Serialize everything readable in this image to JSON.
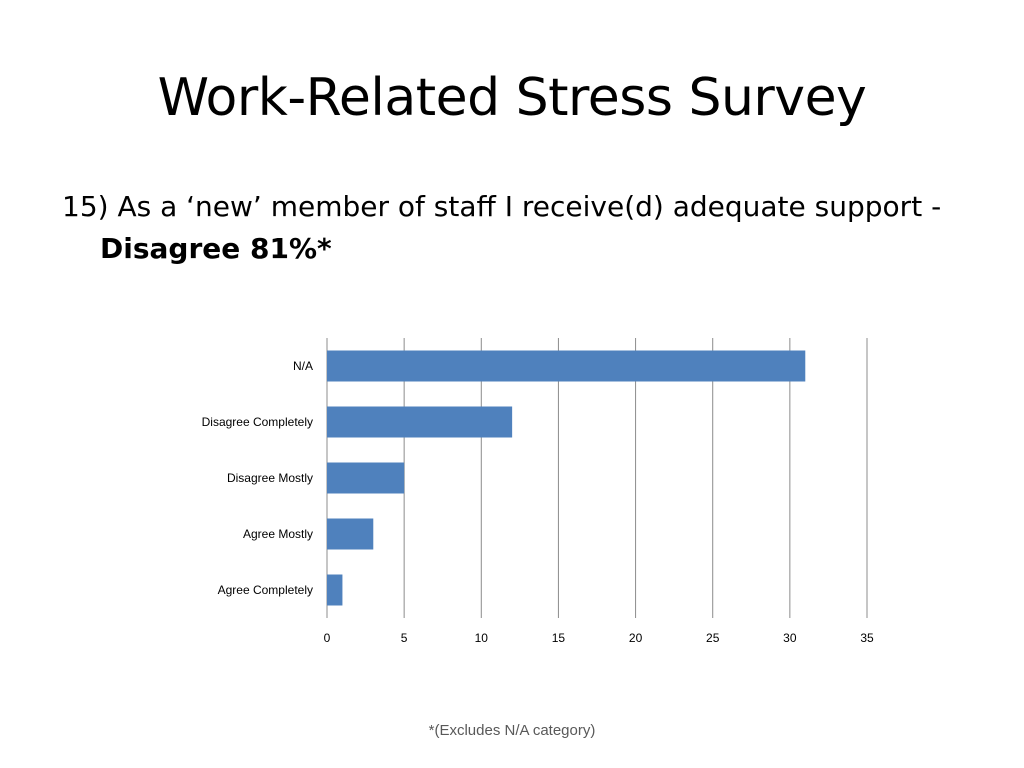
{
  "slide": {
    "title": "Work-Related Stress Survey",
    "question_text": "15) As a ‘new’ member of staff I receive(d) adequate support -",
    "question_highlight": "Disagree 81%*",
    "footnote": "*(Excludes N/A category)"
  },
  "chart_data": {
    "type": "bar",
    "orientation": "horizontal",
    "categories": [
      "N/A",
      "Disagree Completely",
      "Disagree Mostly",
      "Agree Mostly",
      "Agree Completely"
    ],
    "values": [
      31,
      12,
      5,
      3,
      1
    ],
    "xlim": [
      0,
      35
    ],
    "x_ticks": [
      0,
      5,
      10,
      15,
      20,
      25,
      30,
      35
    ],
    "grid": true,
    "legend": "none",
    "bar_color": "#4F81BD",
    "grid_color": "#8C8C8C"
  }
}
